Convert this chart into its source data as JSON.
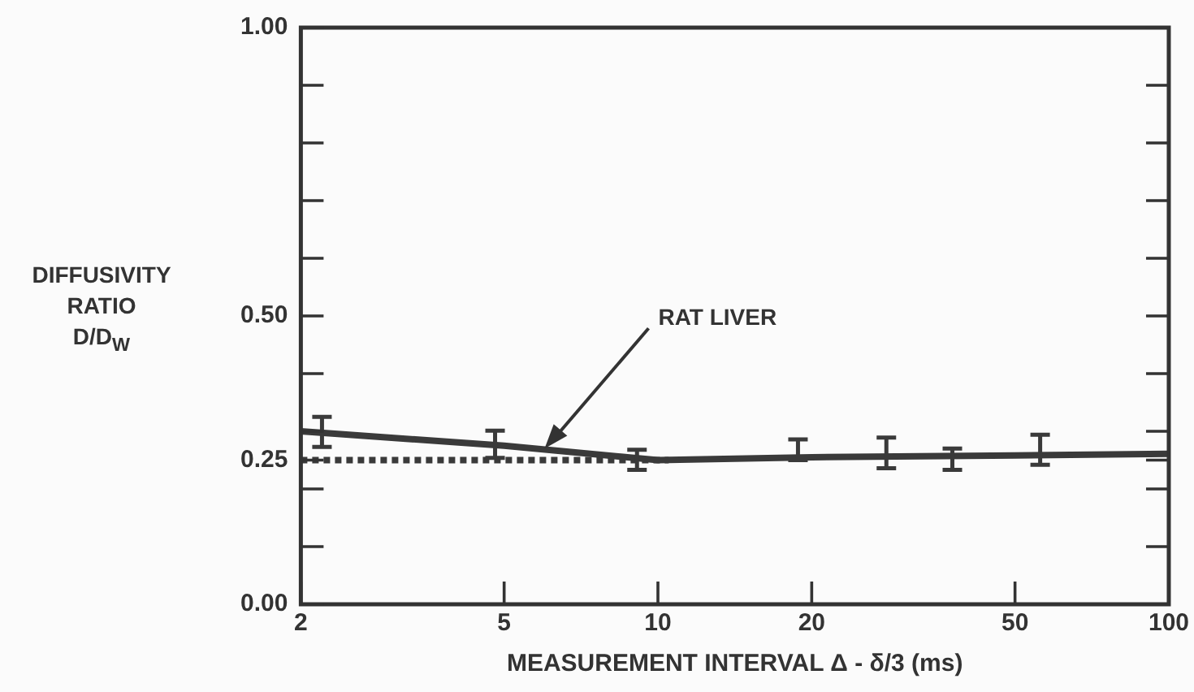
{
  "chart_data": {
    "type": "line",
    "xlabel": "MEASUREMENT INTERVAL Δ - δ/3 (ms)",
    "ylabel": "DIFFUSIVITY RATIO D/D$_{W}$",
    "log": "x",
    "grid": false,
    "legend": false,
    "xlim": [
      2,
      100
    ],
    "xticks": [
      2,
      5,
      10,
      20,
      50,
      100
    ],
    "ylim": [
      0,
      1
    ],
    "yticks": [
      {
        "value": 0,
        "label": "0.00"
      },
      {
        "value": 0.1,
        "label": null
      },
      {
        "value": 0.2,
        "label": null
      },
      0.25,
      {
        "value": 0.3,
        "label": null
      },
      {
        "value": 0.4,
        "label": null
      },
      {
        "value": 0.5,
        "label": "0.50"
      },
      {
        "value": 0.6,
        "label": null
      },
      {
        "value": 0.7,
        "label": null
      },
      {
        "value": 0.8,
        "label": null
      },
      {
        "value": 0.9,
        "label": null
      },
      {
        "value": 1,
        "label": "1.00"
      }
    ],
    "annotations": [
      {
        "text": "RAT LIVER",
        "x": 6,
        "y": 0.27
      }
    ],
    "series": [
      {
        "type": "line",
        "color": "#3a3a3a",
        "marker": "none",
        "line_style": "solid",
        "x": [
          2,
          5,
          10,
          20,
          50,
          100
        ],
        "values": [
          0.3,
          0.275,
          0.25,
          0.255,
          0.258,
          0.261
        ]
      },
      {
        "type": "line",
        "color": "#3a3a3a",
        "marker": "none",
        "line_style": "dotted",
        "x": [
          2,
          10.5
        ],
        "values": [
          0.25,
          0.25
        ]
      },
      {
        "type": "scatter",
        "color": "#3a3a3a",
        "x": [
          2.2,
          4.8,
          9.1,
          18.8,
          28,
          37.7,
          56
        ],
        "values": [
          0.298,
          0.28,
          0.254,
          0.264,
          0.262,
          0.254,
          0.27
        ],
        "errors": [
          [
            0.273,
            0.325
          ],
          [
            0.254,
            0.301
          ],
          [
            0.233,
            0.268
          ],
          [
            0.25,
            0.286
          ],
          [
            0.236,
            0.289
          ],
          [
            0.233,
            0.27
          ],
          [
            0.242,
            0.294
          ]
        ]
      }
    ]
  }
}
